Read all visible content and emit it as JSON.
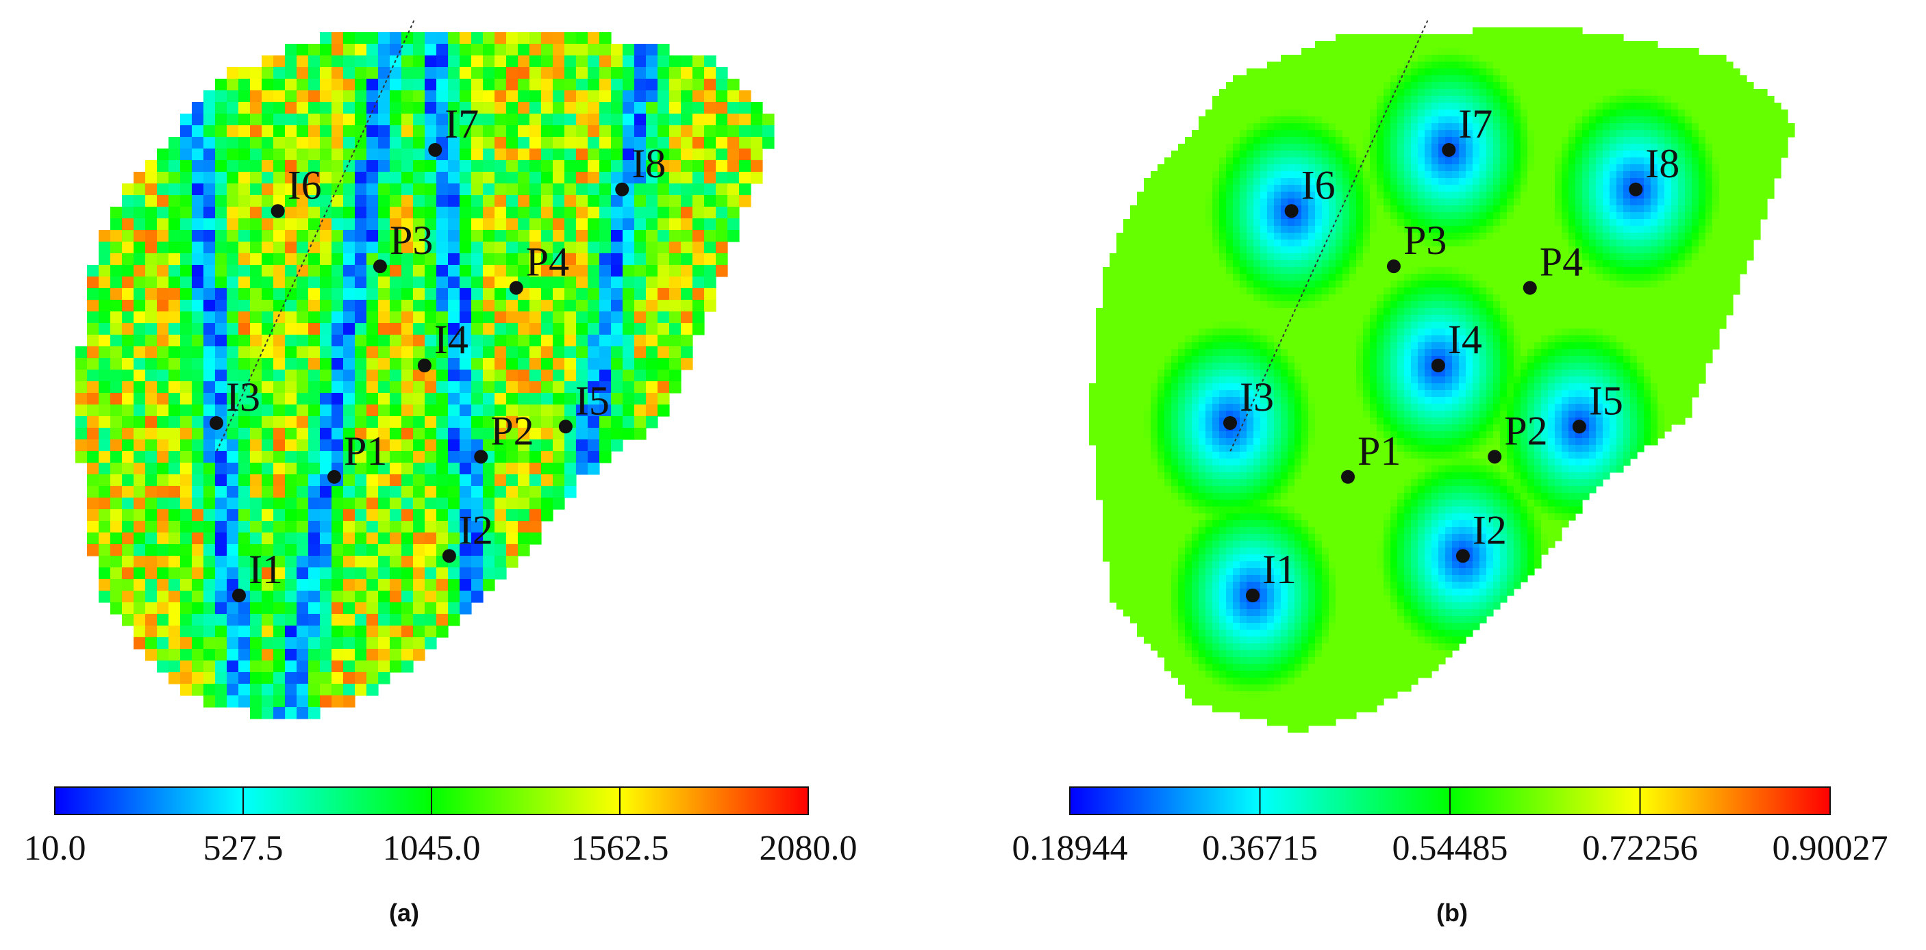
{
  "chart_data": [
    {
      "type": "heatmap",
      "panel_label": "(a)",
      "colorbar": {
        "min": 10.0,
        "max": 2080.0,
        "ticks": [
          "10.0",
          "527.5",
          "1045.0",
          "1562.5",
          "2080.0"
        ],
        "tick_values": [
          10.0,
          527.5,
          1045.0,
          1562.5,
          2080.0
        ]
      },
      "wells": [
        {
          "name": "I1",
          "x": 0.232,
          "y": 0.8
        },
        {
          "name": "I2",
          "x": 0.53,
          "y": 0.745
        },
        {
          "name": "I3",
          "x": 0.2,
          "y": 0.56
        },
        {
          "name": "I4",
          "x": 0.495,
          "y": 0.48
        },
        {
          "name": "I5",
          "x": 0.695,
          "y": 0.565
        },
        {
          "name": "I6",
          "x": 0.287,
          "y": 0.265
        },
        {
          "name": "I7",
          "x": 0.51,
          "y": 0.18
        },
        {
          "name": "I8",
          "x": 0.775,
          "y": 0.235
        },
        {
          "name": "P1",
          "x": 0.367,
          "y": 0.635
        },
        {
          "name": "P2",
          "x": 0.575,
          "y": 0.607
        },
        {
          "name": "P3",
          "x": 0.432,
          "y": 0.342
        },
        {
          "name": "P4",
          "x": 0.625,
          "y": 0.372
        }
      ]
    },
    {
      "type": "heatmap",
      "panel_label": "(b)",
      "colorbar": {
        "min": 0.18944,
        "max": 0.90027,
        "ticks": [
          "0.18944",
          "0.36715",
          "0.54485",
          "0.72256",
          "0.90027"
        ],
        "tick_values": [
          0.18944,
          0.36715,
          0.54485,
          0.72256,
          0.90027
        ]
      },
      "wells": [
        {
          "name": "I1",
          "x": 0.232,
          "y": 0.8
        },
        {
          "name": "I2",
          "x": 0.53,
          "y": 0.745
        },
        {
          "name": "I3",
          "x": 0.2,
          "y": 0.56
        },
        {
          "name": "I4",
          "x": 0.495,
          "y": 0.48
        },
        {
          "name": "I5",
          "x": 0.695,
          "y": 0.565
        },
        {
          "name": "I6",
          "x": 0.287,
          "y": 0.265
        },
        {
          "name": "I7",
          "x": 0.51,
          "y": 0.18
        },
        {
          "name": "I8",
          "x": 0.775,
          "y": 0.235
        },
        {
          "name": "P1",
          "x": 0.367,
          "y": 0.635
        },
        {
          "name": "P2",
          "x": 0.575,
          "y": 0.607
        },
        {
          "name": "P3",
          "x": 0.432,
          "y": 0.342
        },
        {
          "name": "P4",
          "x": 0.625,
          "y": 0.372
        }
      ]
    }
  ],
  "colors": {
    "jet": [
      "#0000ff",
      "#00ffff",
      "#00ff00",
      "#ffff00",
      "#ff0000"
    ],
    "well_marker": "#111111"
  }
}
